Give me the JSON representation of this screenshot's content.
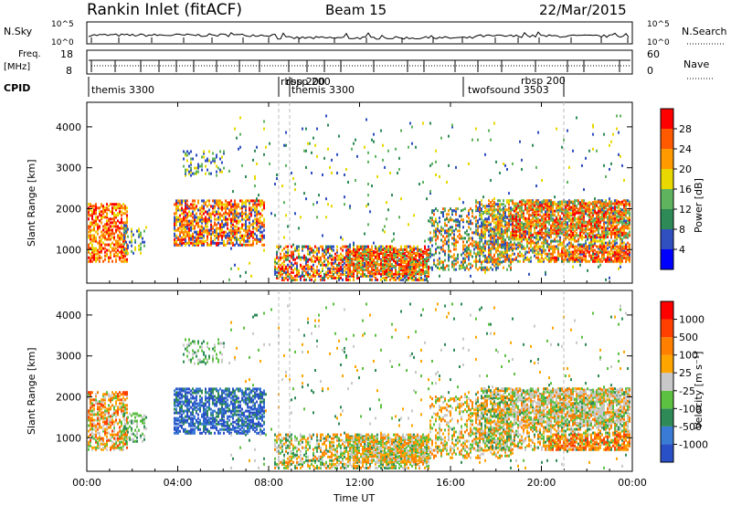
{
  "header": {
    "title": "Rankin Inlet (fitACF)",
    "beam": "Beam 15",
    "date": "22/Mar/2015"
  },
  "top_panels": {
    "nsky_label": "N.Sky",
    "nsky_ticks": [
      "10^5",
      "10^0"
    ],
    "nsearch_label": "N.Search",
    "nsearch_ticks": [
      "10^5",
      "10^0"
    ],
    "freq_label_1": "Freq.",
    "freq_label_2": "[MHz]",
    "freq_ticks": [
      "18",
      "8"
    ],
    "nave_label": "Nave",
    "nave_ticks": [
      "60",
      "0"
    ],
    "cpid_label": "CPID",
    "cpid_modes": [
      "themis 3300",
      "rbsp 200",
      "rbsp 200",
      "themis 3300",
      "twofsound 3503",
      "rbsp 200"
    ]
  },
  "chart_data": [
    {
      "type": "heatmap",
      "name": "power-panel",
      "ylabel": "Slant Range [km]",
      "ylim": [
        180,
        4600
      ],
      "yticks": [
        1000,
        2000,
        3000,
        4000
      ],
      "xlim_hours": [
        0,
        24
      ],
      "colorbar_label": "Power [dB]",
      "colorbar_ticks": [
        "28",
        "24",
        "20",
        "16",
        "12",
        "8",
        "4"
      ],
      "colorbar_colors": [
        "#0000ff",
        "#3050c0",
        "#2e8b57",
        "#5fb35f",
        "#e8d800",
        "#ff9a00",
        "#ff5a00",
        "#ff0000"
      ]
    },
    {
      "type": "heatmap",
      "name": "velocity-panel",
      "ylabel": "Slant Range [km]",
      "ylim": [
        180,
        4600
      ],
      "yticks": [
        1000,
        2000,
        3000,
        4000
      ],
      "xlim_hours": [
        0,
        24
      ],
      "xlabel": "Time UT",
      "xtick_labels": [
        "00:00",
        "04:00",
        "08:00",
        "12:00",
        "16:00",
        "20:00",
        "00:00"
      ],
      "colorbar_label": "Velocity [m s⁻¹]",
      "colorbar_ticks": [
        "1000",
        "500",
        "100",
        "25",
        "-25",
        "-100",
        "-500",
        "-1000"
      ],
      "colorbar_colors": [
        "#2a50c8",
        "#3a7bd5",
        "#2e8b57",
        "#5cc040",
        "#c8c8c8",
        "#ffa500",
        "#ff7f00",
        "#ff4000",
        "#ff0000"
      ]
    }
  ]
}
